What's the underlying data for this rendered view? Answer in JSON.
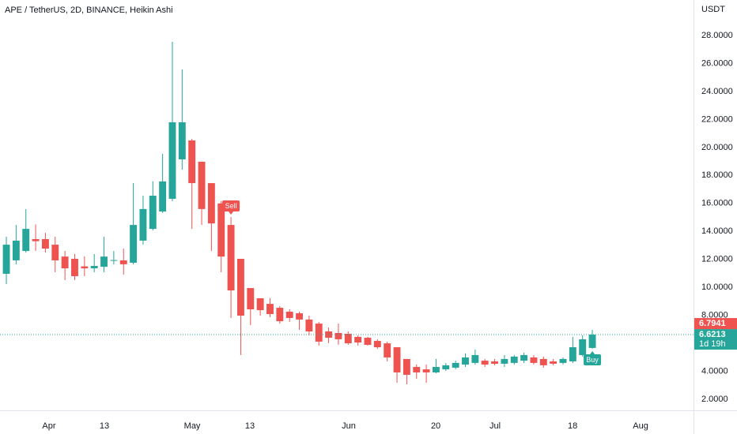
{
  "chart_data": {
    "type": "candlestick",
    "title": "APE / TetherUS, 2D, BINANCE, Heikin Ashi",
    "y_axis_label": "USDT",
    "up_color": "#26a69a",
    "down_color": "#ef5350",
    "series": {
      "open": [
        10.97,
        11.93,
        12.6,
        13.45,
        13.45,
        13.05,
        12.2,
        12.04,
        11.5,
        11.36,
        11.47,
        11.9,
        11.93,
        11.76,
        13.34,
        14.18,
        15.42,
        16.33,
        19.15,
        20.5,
        18.98,
        17.45,
        16.0,
        14.46,
        12.04,
        9.95,
        9.22,
        8.82,
        8.54,
        8.26,
        8.15,
        7.7,
        7.41,
        6.85,
        6.74,
        6.68,
        6.46,
        6.4,
        6.17,
        6.0,
        5.72,
        4.88,
        4.31,
        4.14,
        3.92,
        4.14,
        4.26,
        4.48,
        4.6,
        4.76,
        4.71,
        4.54,
        4.6,
        4.76,
        4.99,
        4.88,
        4.71,
        4.6,
        4.71,
        5.16,
        5.67
      ],
      "high": [
        13.62,
        14.46,
        15.59,
        14.5,
        13.9,
        13.62,
        12.6,
        12.38,
        12.21,
        12.38,
        13.62,
        12.6,
        12.77,
        17.45,
        16.55,
        17.57,
        19.54,
        27.55,
        25.58,
        20.61,
        18.98,
        17.45,
        16.16,
        15.03,
        12.04,
        9.95,
        9.22,
        9.22,
        8.66,
        8.43,
        8.26,
        7.98,
        7.53,
        7.13,
        7.41,
        6.85,
        6.57,
        6.46,
        6.29,
        6.12,
        5.72,
        4.88,
        4.48,
        4.48,
        4.88,
        4.59,
        4.76,
        5.27,
        5.55,
        4.88,
        4.88,
        5.16,
        5.16,
        5.33,
        5.16,
        5.05,
        4.88,
        4.99,
        6.46,
        6.57,
        6.96
      ],
      "low": [
        10.23,
        11.64,
        12.49,
        12.6,
        12.49,
        11.08,
        10.52,
        10.52,
        10.8,
        11.08,
        11.08,
        11.64,
        10.91,
        11.64,
        13.05,
        14.07,
        15.31,
        16.16,
        18.41,
        14.18,
        14.46,
        12.6,
        11.08,
        7.81,
        5.16,
        7.3,
        7.98,
        7.87,
        7.41,
        7.53,
        6.96,
        6.57,
        5.84,
        6.01,
        5.9,
        5.9,
        5.84,
        5.84,
        5.61,
        4.71,
        3.18,
        3.07,
        3.47,
        3.18,
        3.86,
        4.03,
        4.14,
        4.31,
        4.48,
        4.31,
        4.43,
        4.31,
        4.48,
        4.59,
        4.48,
        4.26,
        4.43,
        4.48,
        4.59,
        5.05,
        5.61
      ],
      "close": [
        13.05,
        13.34,
        14.18,
        13.3,
        12.77,
        11.93,
        11.36,
        10.8,
        11.36,
        11.53,
        12.2,
        11.95,
        11.65,
        14.46,
        15.6,
        16.55,
        17.57,
        21.8,
        21.8,
        17.45,
        15.6,
        14.57,
        12.2,
        9.78,
        7.98,
        8.43,
        8.37,
        8.09,
        7.58,
        7.81,
        7.7,
        6.85,
        6.12,
        6.4,
        6.29,
        6.0,
        6.06,
        5.89,
        5.72,
        4.99,
        3.92,
        3.75,
        3.92,
        3.92,
        4.31,
        4.43,
        4.6,
        4.99,
        5.16,
        4.48,
        4.54,
        4.88,
        5.05,
        5.16,
        4.6,
        4.43,
        4.54,
        4.88,
        5.72,
        6.29,
        6.6213
      ]
    },
    "xlim": [
      -0.65,
      70.36
    ],
    "xticks": [
      {
        "value": 4.37,
        "label": "Apr"
      },
      {
        "value": 10.04,
        "label": "13"
      },
      {
        "value": 19.03,
        "label": "May"
      },
      {
        "value": 24.94,
        "label": "13"
      },
      {
        "value": 35.06,
        "label": "Jun"
      },
      {
        "value": 43.97,
        "label": "20"
      },
      {
        "value": 50.04,
        "label": "Jul"
      },
      {
        "value": 57.98,
        "label": "18"
      },
      {
        "value": 64.94,
        "label": "Aug"
      }
    ],
    "ylim": [
      1.21,
      30.54
    ],
    "yticks": [
      {
        "value": 2,
        "label": "2.0000"
      },
      {
        "value": 4,
        "label": "4.0000"
      },
      {
        "value": 6,
        "label": "6.0000"
      },
      {
        "value": 8,
        "label": "8.0000"
      },
      {
        "value": 10,
        "label": "10.0000"
      },
      {
        "value": 12,
        "label": "12.0000"
      },
      {
        "value": 14,
        "label": "14.0000"
      },
      {
        "value": 16,
        "label": "16.0000"
      },
      {
        "value": 18,
        "label": "18.0000"
      },
      {
        "value": 20,
        "label": "20.0000"
      },
      {
        "value": 22,
        "label": "22.0000"
      },
      {
        "value": 24,
        "label": "24.0000"
      },
      {
        "value": 26,
        "label": "26.0000"
      },
      {
        "value": 28,
        "label": "28.0000"
      }
    ],
    "grid": false,
    "signals": [
      {
        "label": "Sell",
        "x": 23,
        "color": "#ef5350"
      },
      {
        "label": "Buy",
        "x": 60,
        "color": "#26a69a"
      }
    ],
    "price_labels": [
      {
        "value": 6.7941,
        "color": "#ef5350"
      },
      {
        "value": 6.6213,
        "color": "#26a69a",
        "countdown": "1d 19h"
      }
    ]
  }
}
